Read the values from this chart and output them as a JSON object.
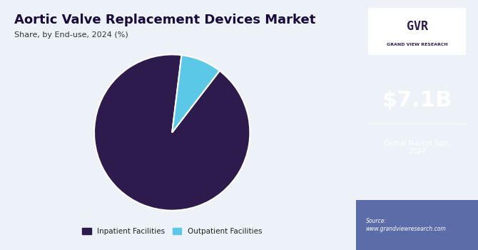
{
  "title": "Aortic Valve Replacement Devices Market",
  "subtitle": "Share, by End-use, 2024 (%)",
  "slices": [
    91.5,
    8.5
  ],
  "labels": [
    "Inpatient Facilities",
    "Outpatient Facilities"
  ],
  "colors": [
    "#2D1B4E",
    "#5BC8E8"
  ],
  "startangle": 83,
  "left_bg": "#EDF2F8",
  "right_bg": "#3B1060",
  "right_bg_bottom": "#5B6CA8",
  "market_size": "$7.1B",
  "market_label": "Global Market Size,\n2024",
  "source_text": "Source:\nwww.grandviewresearch.com",
  "title_color": "#1A0A3B",
  "subtitle_color": "#333333",
  "legend_color": "#222222",
  "gvr_text": "GRAND VIEW RESEARCH"
}
